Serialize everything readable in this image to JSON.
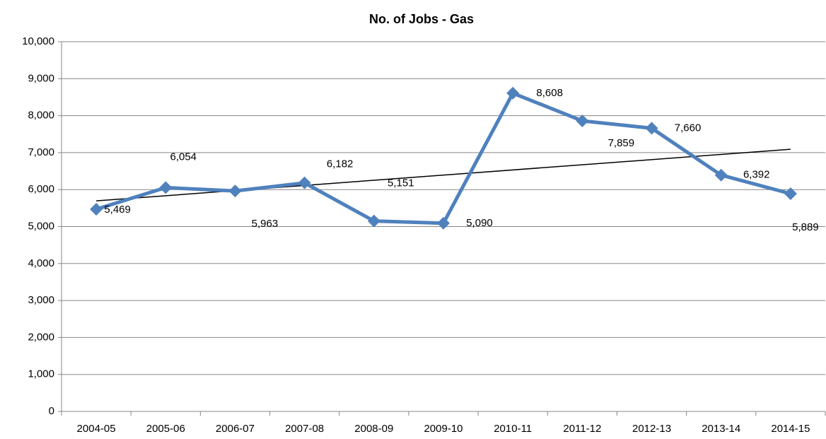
{
  "chart_data": {
    "type": "line",
    "title": "No. of Jobs - Gas",
    "categories": [
      "2004-05",
      "2005-06",
      "2006-07",
      "2007-08",
      "2008-09",
      "2009-10",
      "2010-11",
      "2011-12",
      "2012-13",
      "2013-14",
      "2014-15"
    ],
    "series": [
      {
        "name": "No. of Jobs - Gas",
        "color": "#4f81bd",
        "values": [
          5469,
          6054,
          5963,
          6182,
          5151,
          5090,
          8608,
          7859,
          7660,
          6392,
          5889
        ],
        "value_labels": [
          "5,469",
          "6,054",
          "5,963",
          "6,182",
          "5,151",
          "5,090",
          "8,608",
          "7,859",
          "7,660",
          "6,392",
          "5,889"
        ]
      }
    ],
    "trendline": {
      "type": "linear",
      "color": "#000000"
    },
    "ylim": [
      0,
      10000
    ],
    "yticks": [
      0,
      {
        "value": 1000,
        "label": "1,000"
      },
      {
        "value": 2000,
        "label": "2,000"
      },
      {
        "value": 3000,
        "label": "3,000"
      },
      {
        "value": 4000,
        "label": "4,000"
      },
      {
        "value": 5000,
        "label": "5,000"
      },
      {
        "value": 6000,
        "label": "6,000"
      },
      {
        "value": 7000,
        "label": "7,000"
      },
      {
        "value": 8000,
        "label": "8,000"
      },
      {
        "value": 9000,
        "label": "9,000"
      },
      {
        "value": 10000,
        "label": "10,000"
      }
    ],
    "grid": true
  }
}
